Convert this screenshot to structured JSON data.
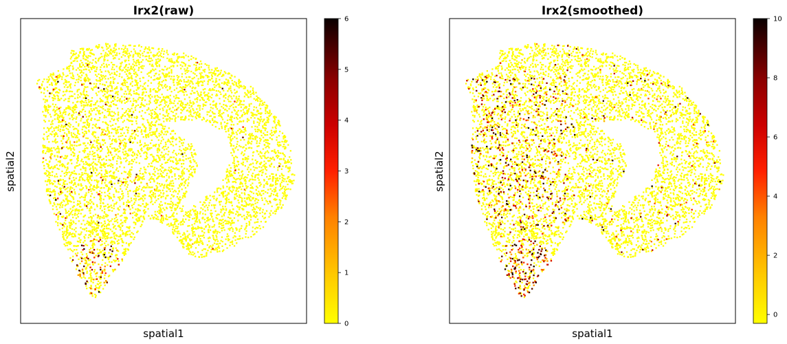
{
  "chart_data": [
    {
      "type": "scatter",
      "title": "Irx2(raw)",
      "xlabel": "spatial1",
      "ylabel": "spatial2",
      "colorbar": {
        "colormap": "hot_r",
        "range": [
          0,
          6
        ],
        "ticks": [
          0,
          1,
          2,
          3,
          4,
          5,
          6
        ],
        "tick_labels": [
          "0",
          "1",
          "2",
          "3",
          "4",
          "5",
          "6"
        ]
      },
      "axis_ticks_shown": false,
      "grid": false,
      "expression_summary": {
        "background_value": 0,
        "high_expression_region": "bottom-left lobe",
        "sparse_high_points": true
      }
    },
    {
      "type": "scatter",
      "title": "Irx2(smoothed)",
      "xlabel": "spatial1",
      "ylabel": "spatial2",
      "colorbar": {
        "colormap": "hot_r",
        "range": [
          -0.3,
          10
        ],
        "ticks": [
          0,
          2,
          4,
          6,
          8,
          10
        ],
        "tick_labels": [
          "0",
          "2",
          "4",
          "6",
          "8",
          "10"
        ]
      },
      "axis_ticks_shown": false,
      "grid": false,
      "expression_summary": {
        "background_value": 0,
        "high_expression_region": "bottom-left lobe and left striatal area",
        "sparse_high_points": false
      }
    }
  ],
  "colors": {
    "background": "#ffffff",
    "axis": "#000000",
    "cmap_stops": [
      "#ffff00",
      "#ffcc00",
      "#ff8000",
      "#ff2000",
      "#cc0000",
      "#8b0000",
      "#400000",
      "#0a0000"
    ]
  }
}
